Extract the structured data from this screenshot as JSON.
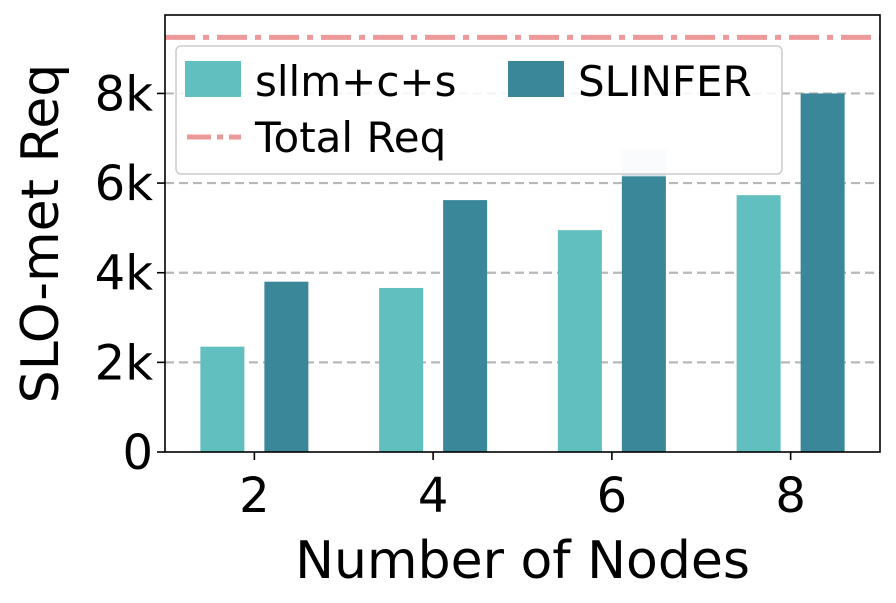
{
  "chart_data": {
    "type": "bar",
    "categories": [
      "2",
      "4",
      "6",
      "8"
    ],
    "series": [
      {
        "name": "sllm+c+s",
        "values": [
          2350,
          3660,
          4950,
          5730
        ],
        "color": "#62bfbf"
      },
      {
        "name": "SLINFER",
        "values": [
          3800,
          5620,
          6150,
          8000
        ],
        "color": "#3a8799"
      }
    ],
    "overlay": {
      "category": "6",
      "value": 6750,
      "color": "#d4e4ea"
    },
    "reference_line": {
      "name": "Total Req",
      "value": 9250,
      "color": "#ee9999",
      "style": "dash-dot"
    },
    "xlabel": "Number of Nodes",
    "ylabel": "SLO-met Req",
    "ylim": [
      0,
      9750
    ],
    "yticks": [
      {
        "value": 0,
        "label": "0"
      },
      {
        "value": 2000,
        "label": "2k"
      },
      {
        "value": 4000,
        "label": "4k"
      },
      {
        "value": 6000,
        "label": "6k"
      },
      {
        "value": 8000,
        "label": "8k"
      }
    ],
    "grid": "horizontal dashed",
    "legend_position": "top-left"
  }
}
